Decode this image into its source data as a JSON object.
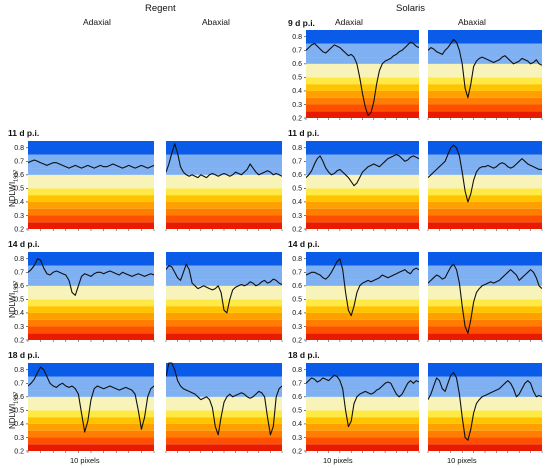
{
  "headers": {
    "cultivar_left": "Regent",
    "cultivar_right": "Solaris",
    "side_left": "Adaxial",
    "side_right": "Abaxial"
  },
  "time_labels": [
    "9 d p.i.",
    "11 d p.i.",
    "14 d p.i.",
    "18 d p.i."
  ],
  "y_axis_label": "NDLWI",
  "y_axis_subscript": "1937",
  "x_scale_label": "10 pixels",
  "colors": {
    "band_blue": "#0a5ce8",
    "band_lightblue": "#7fb0f2",
    "band_pale": "#f8f3b8",
    "band_yellow": "#ffea45",
    "band_gold": "#ffc400",
    "band_orange": "#ffa000",
    "band_darkorange": "#ff7d00",
    "band_redorange": "#ff5000",
    "band_red": "#e81b00",
    "line": "#111111"
  },
  "chart_data": [
    {
      "type": "line",
      "cultivar": "Solaris",
      "side": "Adaxial",
      "time": "9 d p.i.",
      "ylim": [
        0.2,
        0.85
      ],
      "y_ticks": [
        0.2,
        0.3,
        0.4,
        0.5,
        0.6,
        0.7,
        0.8
      ],
      "background_bands": [
        0.2,
        0.25,
        0.3,
        0.35,
        0.4,
        0.45,
        0.5,
        0.55,
        0.6,
        0.65,
        0.75,
        0.85
      ],
      "values": [
        0.7,
        0.72,
        0.74,
        0.75,
        0.73,
        0.71,
        0.69,
        0.68,
        0.7,
        0.72,
        0.74,
        0.73,
        0.72,
        0.7,
        0.68,
        0.66,
        0.67,
        0.65,
        0.6,
        0.5,
        0.38,
        0.28,
        0.22,
        0.24,
        0.32,
        0.45,
        0.55,
        0.6,
        0.62,
        0.63,
        0.64,
        0.66,
        0.67,
        0.69,
        0.7,
        0.72,
        0.74,
        0.76,
        0.75,
        0.73,
        0.72
      ]
    },
    {
      "type": "line",
      "cultivar": "Solaris",
      "side": "Abaxial",
      "time": "9 d p.i.",
      "ylim": [
        0.2,
        0.85
      ],
      "y_ticks": [],
      "background_bands": [
        0.2,
        0.25,
        0.3,
        0.35,
        0.4,
        0.45,
        0.5,
        0.55,
        0.6,
        0.65,
        0.75,
        0.85
      ],
      "values": [
        0.7,
        0.72,
        0.71,
        0.69,
        0.68,
        0.67,
        0.7,
        0.72,
        0.75,
        0.78,
        0.76,
        0.7,
        0.6,
        0.42,
        0.35,
        0.45,
        0.58,
        0.62,
        0.64,
        0.65,
        0.64,
        0.63,
        0.62,
        0.61,
        0.62,
        0.63,
        0.65,
        0.66,
        0.64,
        0.62,
        0.6,
        0.61,
        0.62,
        0.64,
        0.63,
        0.62,
        0.6,
        0.61,
        0.63,
        0.6,
        0.59
      ]
    },
    {
      "type": "line",
      "cultivar": "Regent",
      "side": "Adaxial",
      "time": "11 d p.i.",
      "ylim": [
        0.2,
        0.85
      ],
      "y_ticks": [
        0.2,
        0.3,
        0.4,
        0.5,
        0.6,
        0.7,
        0.8
      ],
      "background_bands": [
        0.2,
        0.25,
        0.3,
        0.35,
        0.4,
        0.45,
        0.5,
        0.55,
        0.6,
        0.65,
        0.75,
        0.85
      ],
      "values": [
        0.69,
        0.7,
        0.71,
        0.7,
        0.69,
        0.68,
        0.67,
        0.68,
        0.69,
        0.69,
        0.68,
        0.67,
        0.66,
        0.65,
        0.66,
        0.67,
        0.66,
        0.65,
        0.66,
        0.67,
        0.66,
        0.65,
        0.66,
        0.67,
        0.66,
        0.66,
        0.67,
        0.68,
        0.67,
        0.66,
        0.65,
        0.66,
        0.67,
        0.66,
        0.65,
        0.66,
        0.67,
        0.66,
        0.65,
        0.66,
        0.67
      ]
    },
    {
      "type": "line",
      "cultivar": "Regent",
      "side": "Abaxial",
      "time": "11 d p.i.",
      "ylim": [
        0.2,
        0.85
      ],
      "y_ticks": [],
      "background_bands": [
        0.2,
        0.25,
        0.3,
        0.35,
        0.4,
        0.45,
        0.5,
        0.55,
        0.6,
        0.65,
        0.75,
        0.85
      ],
      "values": [
        0.62,
        0.68,
        0.76,
        0.83,
        0.76,
        0.66,
        0.62,
        0.6,
        0.59,
        0.6,
        0.59,
        0.58,
        0.6,
        0.59,
        0.58,
        0.6,
        0.61,
        0.6,
        0.59,
        0.6,
        0.61,
        0.6,
        0.59,
        0.6,
        0.62,
        0.61,
        0.6,
        0.62,
        0.64,
        0.68,
        0.65,
        0.62,
        0.6,
        0.61,
        0.62,
        0.63,
        0.62,
        0.6,
        0.61,
        0.6,
        0.59
      ]
    },
    {
      "type": "line",
      "cultivar": "Solaris",
      "side": "Adaxial",
      "time": "11 d p.i.",
      "ylim": [
        0.2,
        0.85
      ],
      "y_ticks": [
        0.2,
        0.3,
        0.4,
        0.5,
        0.6,
        0.7,
        0.8
      ],
      "background_bands": [
        0.2,
        0.25,
        0.3,
        0.35,
        0.4,
        0.45,
        0.5,
        0.55,
        0.6,
        0.65,
        0.75,
        0.85
      ],
      "values": [
        0.58,
        0.6,
        0.63,
        0.68,
        0.72,
        0.74,
        0.7,
        0.65,
        0.62,
        0.6,
        0.61,
        0.63,
        0.64,
        0.62,
        0.6,
        0.58,
        0.55,
        0.52,
        0.54,
        0.58,
        0.62,
        0.64,
        0.66,
        0.67,
        0.68,
        0.67,
        0.66,
        0.68,
        0.7,
        0.72,
        0.73,
        0.74,
        0.75,
        0.74,
        0.72,
        0.7,
        0.71,
        0.73,
        0.74,
        0.73,
        0.72
      ]
    },
    {
      "type": "line",
      "cultivar": "Solaris",
      "side": "Abaxial",
      "time": "11 d p.i.",
      "ylim": [
        0.2,
        0.85
      ],
      "y_ticks": [],
      "background_bands": [
        0.2,
        0.25,
        0.3,
        0.35,
        0.4,
        0.45,
        0.5,
        0.55,
        0.6,
        0.65,
        0.75,
        0.85
      ],
      "values": [
        0.58,
        0.6,
        0.62,
        0.64,
        0.66,
        0.68,
        0.7,
        0.75,
        0.8,
        0.82,
        0.8,
        0.74,
        0.62,
        0.48,
        0.4,
        0.46,
        0.56,
        0.62,
        0.65,
        0.66,
        0.66,
        0.67,
        0.66,
        0.65,
        0.66,
        0.68,
        0.69,
        0.68,
        0.66,
        0.65,
        0.66,
        0.68,
        0.7,
        0.72,
        0.7,
        0.68,
        0.67,
        0.66,
        0.65,
        0.64,
        0.64
      ]
    },
    {
      "type": "line",
      "cultivar": "Regent",
      "side": "Adaxial",
      "time": "14 d p.i.",
      "ylim": [
        0.2,
        0.85
      ],
      "y_ticks": [
        0.2,
        0.3,
        0.4,
        0.5,
        0.6,
        0.7,
        0.8
      ],
      "background_bands": [
        0.2,
        0.25,
        0.3,
        0.35,
        0.4,
        0.45,
        0.5,
        0.55,
        0.6,
        0.65,
        0.75,
        0.85
      ],
      "values": [
        0.7,
        0.72,
        0.75,
        0.8,
        0.79,
        0.73,
        0.69,
        0.68,
        0.7,
        0.71,
        0.7,
        0.69,
        0.68,
        0.64,
        0.55,
        0.53,
        0.6,
        0.67,
        0.69,
        0.68,
        0.67,
        0.69,
        0.7,
        0.7,
        0.69,
        0.7,
        0.71,
        0.7,
        0.69,
        0.68,
        0.7,
        0.69,
        0.68,
        0.67,
        0.68,
        0.69,
        0.68,
        0.67,
        0.68,
        0.69,
        0.68
      ]
    },
    {
      "type": "line",
      "cultivar": "Regent",
      "side": "Abaxial",
      "time": "14 d p.i.",
      "ylim": [
        0.2,
        0.85
      ],
      "y_ticks": [],
      "background_bands": [
        0.2,
        0.25,
        0.3,
        0.35,
        0.4,
        0.45,
        0.5,
        0.55,
        0.6,
        0.65,
        0.75,
        0.85
      ],
      "values": [
        0.72,
        0.75,
        0.74,
        0.7,
        0.66,
        0.64,
        0.7,
        0.76,
        0.72,
        0.62,
        0.6,
        0.58,
        0.59,
        0.6,
        0.59,
        0.58,
        0.57,
        0.58,
        0.6,
        0.55,
        0.42,
        0.4,
        0.5,
        0.57,
        0.59,
        0.6,
        0.61,
        0.6,
        0.61,
        0.63,
        0.62,
        0.6,
        0.61,
        0.63,
        0.64,
        0.62,
        0.63,
        0.65,
        0.64,
        0.62,
        0.61
      ]
    },
    {
      "type": "line",
      "cultivar": "Solaris",
      "side": "Adaxial",
      "time": "14 d p.i.",
      "ylim": [
        0.2,
        0.85
      ],
      "y_ticks": [
        0.2,
        0.3,
        0.4,
        0.5,
        0.6,
        0.7,
        0.8
      ],
      "background_bands": [
        0.2,
        0.25,
        0.3,
        0.35,
        0.4,
        0.45,
        0.5,
        0.55,
        0.6,
        0.65,
        0.75,
        0.85
      ],
      "values": [
        0.68,
        0.69,
        0.7,
        0.7,
        0.69,
        0.68,
        0.66,
        0.65,
        0.67,
        0.7,
        0.74,
        0.78,
        0.8,
        0.72,
        0.55,
        0.42,
        0.38,
        0.45,
        0.55,
        0.6,
        0.62,
        0.63,
        0.64,
        0.63,
        0.64,
        0.65,
        0.66,
        0.68,
        0.67,
        0.66,
        0.67,
        0.68,
        0.69,
        0.7,
        0.71,
        0.72,
        0.7,
        0.69,
        0.72,
        0.73,
        0.72
      ]
    },
    {
      "type": "line",
      "cultivar": "Solaris",
      "side": "Abaxial",
      "time": "14 d p.i.",
      "ylim": [
        0.2,
        0.85
      ],
      "y_ticks": [],
      "background_bands": [
        0.2,
        0.25,
        0.3,
        0.35,
        0.4,
        0.45,
        0.5,
        0.55,
        0.6,
        0.65,
        0.75,
        0.85
      ],
      "values": [
        0.62,
        0.64,
        0.66,
        0.68,
        0.67,
        0.65,
        0.66,
        0.7,
        0.74,
        0.76,
        0.72,
        0.62,
        0.45,
        0.3,
        0.25,
        0.35,
        0.48,
        0.55,
        0.58,
        0.6,
        0.61,
        0.62,
        0.63,
        0.62,
        0.63,
        0.64,
        0.66,
        0.68,
        0.7,
        0.72,
        0.7,
        0.68,
        0.64,
        0.66,
        0.68,
        0.7,
        0.72,
        0.7,
        0.66,
        0.6,
        0.58
      ]
    },
    {
      "type": "line",
      "cultivar": "Regent",
      "side": "Adaxial",
      "time": "18 d p.i.",
      "ylim": [
        0.2,
        0.85
      ],
      "y_ticks": [
        0.2,
        0.3,
        0.4,
        0.5,
        0.6,
        0.7,
        0.8
      ],
      "background_bands": [
        0.2,
        0.25,
        0.3,
        0.35,
        0.4,
        0.45,
        0.5,
        0.55,
        0.6,
        0.65,
        0.75,
        0.85
      ],
      "values": [
        0.68,
        0.7,
        0.73,
        0.78,
        0.82,
        0.8,
        0.75,
        0.7,
        0.68,
        0.67,
        0.69,
        0.7,
        0.68,
        0.67,
        0.68,
        0.66,
        0.62,
        0.48,
        0.34,
        0.42,
        0.58,
        0.66,
        0.68,
        0.67,
        0.66,
        0.67,
        0.68,
        0.67,
        0.66,
        0.65,
        0.66,
        0.67,
        0.66,
        0.65,
        0.62,
        0.5,
        0.36,
        0.45,
        0.6,
        0.66,
        0.68
      ]
    },
    {
      "type": "line",
      "cultivar": "Regent",
      "side": "Abaxial",
      "time": "18 d p.i.",
      "ylim": [
        0.2,
        0.85
      ],
      "y_ticks": [],
      "background_bands": [
        0.2,
        0.25,
        0.3,
        0.35,
        0.4,
        0.45,
        0.5,
        0.55,
        0.6,
        0.65,
        0.75,
        0.85
      ],
      "values": [
        0.75,
        0.85,
        0.85,
        0.8,
        0.72,
        0.68,
        0.66,
        0.65,
        0.64,
        0.63,
        0.62,
        0.6,
        0.58,
        0.59,
        0.6,
        0.58,
        0.52,
        0.38,
        0.32,
        0.45,
        0.56,
        0.6,
        0.62,
        0.6,
        0.61,
        0.62,
        0.63,
        0.62,
        0.6,
        0.59,
        0.6,
        0.62,
        0.64,
        0.63,
        0.6,
        0.45,
        0.32,
        0.38,
        0.6,
        0.66,
        0.68
      ]
    },
    {
      "type": "line",
      "cultivar": "Solaris",
      "side": "Adaxial",
      "time": "18 d p.i.",
      "ylim": [
        0.2,
        0.85
      ],
      "y_ticks": [
        0.2,
        0.3,
        0.4,
        0.5,
        0.6,
        0.7,
        0.8
      ],
      "background_bands": [
        0.2,
        0.25,
        0.3,
        0.35,
        0.4,
        0.45,
        0.5,
        0.55,
        0.6,
        0.65,
        0.75,
        0.85
      ],
      "values": [
        0.7,
        0.72,
        0.74,
        0.73,
        0.71,
        0.72,
        0.74,
        0.73,
        0.72,
        0.74,
        0.76,
        0.75,
        0.72,
        0.66,
        0.5,
        0.38,
        0.42,
        0.55,
        0.6,
        0.62,
        0.63,
        0.64,
        0.63,
        0.62,
        0.63,
        0.65,
        0.66,
        0.68,
        0.7,
        0.71,
        0.7,
        0.66,
        0.62,
        0.6,
        0.62,
        0.66,
        0.7,
        0.72,
        0.7,
        0.72,
        0.71
      ]
    },
    {
      "type": "line",
      "cultivar": "Solaris",
      "side": "Abaxial",
      "time": "18 d p.i.",
      "ylim": [
        0.2,
        0.85
      ],
      "y_ticks": [],
      "background_bands": [
        0.2,
        0.25,
        0.3,
        0.35,
        0.4,
        0.45,
        0.5,
        0.55,
        0.6,
        0.65,
        0.75,
        0.85
      ],
      "values": [
        0.58,
        0.62,
        0.68,
        0.74,
        0.72,
        0.66,
        0.64,
        0.7,
        0.76,
        0.78,
        0.74,
        0.62,
        0.45,
        0.3,
        0.28,
        0.36,
        0.48,
        0.55,
        0.58,
        0.6,
        0.61,
        0.62,
        0.63,
        0.64,
        0.65,
        0.66,
        0.68,
        0.7,
        0.72,
        0.7,
        0.66,
        0.6,
        0.62,
        0.66,
        0.7,
        0.72,
        0.7,
        0.64,
        0.6,
        0.61,
        0.6
      ]
    }
  ]
}
